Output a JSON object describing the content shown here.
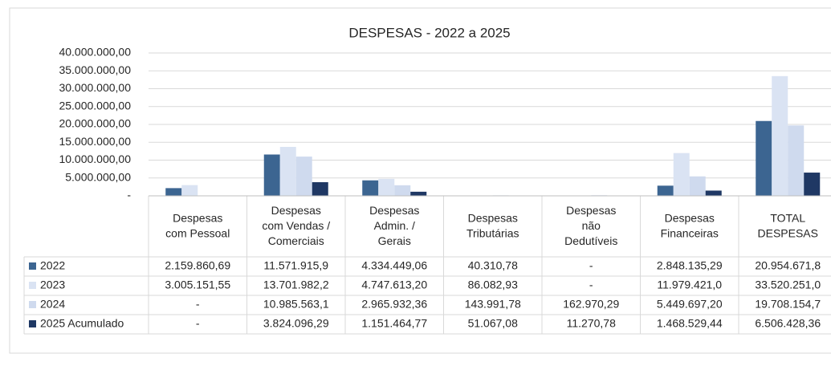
{
  "chart_data": {
    "type": "bar",
    "title": "DESPESAS - 2022 a 2025",
    "categories": [
      "Despesas\ncom Pessoal",
      "Despesas\ncom Vendas /\nComerciais",
      "Despesas\nAdmin. /\nGerais",
      "Despesas\nTributárias",
      "Despesas\nnão\nDedutíveis",
      "Despesas\nFinanceiras",
      "TOTAL\nDESPESAS"
    ],
    "series": [
      {
        "name": "2022",
        "color": "#3c6591",
        "values": [
          2159860.69,
          11571915.9,
          4334449.06,
          40310.78,
          null,
          2848135.29,
          20954671.8
        ],
        "value_labels": [
          "2.159.860,69",
          "11.571.915,9",
          "4.334.449,06",
          "40.310,78",
          "-",
          "2.848.135,29",
          "20.954.671,8"
        ]
      },
      {
        "name": "2023",
        "color": "#dae3f3",
        "values": [
          3005151.55,
          13701982.2,
          4747613.2,
          86082.93,
          null,
          11979421.0,
          33520251.0
        ],
        "value_labels": [
          "3.005.151,55",
          "13.701.982,2",
          "4.747.613,20",
          "86.082,93",
          "-",
          "11.979.421,0",
          "33.520.251,0"
        ]
      },
      {
        "name": "2024",
        "color": "#cfdaee",
        "values": [
          null,
          10985563.1,
          2965932.36,
          143991.78,
          162970.29,
          5449697.2,
          19708154.7
        ],
        "value_labels": [
          "-",
          "10.985.563,1",
          "2.965.932,36",
          "143.991,78",
          "162.970,29",
          "5.449.697,20",
          "19.708.154,7"
        ]
      },
      {
        "name": "2025 Acumulado",
        "color": "#1f3864",
        "values": [
          null,
          3824096.29,
          1151464.77,
          51067.08,
          11270.78,
          1468529.44,
          6506428.36
        ],
        "value_labels": [
          "-",
          "3.824.096,29",
          "1.151.464,77",
          "51.067,08",
          "11.270,78",
          "1.468.529,44",
          "6.506.428,36"
        ]
      }
    ],
    "ylim": [
      0,
      40000000
    ],
    "yticks": [
      {
        "value": 0,
        "label": "-"
      },
      {
        "value": 5000000,
        "label": "5.000.000,00"
      },
      {
        "value": 10000000,
        "label": "10.000.000,00"
      },
      {
        "value": 15000000,
        "label": "15.000.000,00"
      },
      {
        "value": 20000000,
        "label": "20.000.000,00"
      },
      {
        "value": 25000000,
        "label": "25.000.000,00"
      },
      {
        "value": 30000000,
        "label": "30.000.000,00"
      },
      {
        "value": 35000000,
        "label": "35.000.000,00"
      },
      {
        "value": 40000000,
        "label": "40.000.000,00"
      }
    ],
    "grid": true
  }
}
